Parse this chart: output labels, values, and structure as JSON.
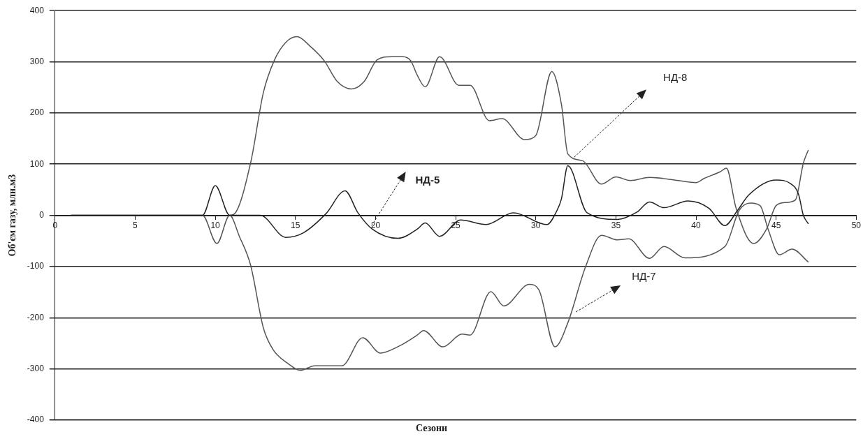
{
  "chart_data": {
    "type": "line",
    "xlabel": "Сезони",
    "ylabel": "Об'єм газу, млн.м3",
    "xlim": [
      0,
      50
    ],
    "xticks": [
      0,
      5,
      10,
      15,
      20,
      25,
      30,
      35,
      40,
      45,
      50
    ],
    "ylim": [
      -400,
      400
    ],
    "yticks": [
      -400,
      -300,
      -200,
      -100,
      0,
      100,
      200,
      300,
      400
    ],
    "grid": "y",
    "legend": false,
    "marker": "none",
    "line_style": "solid",
    "series": [
      {
        "color": "#222222",
        "x": [
          1,
          2,
          3,
          4,
          5,
          6,
          7,
          8,
          9.2,
          10.0,
          10.9,
          12.8,
          14.4,
          15.5,
          16.9,
          18.1,
          18.9,
          19.8,
          21.4,
          22.6,
          23.1,
          24.0,
          25.3,
          26.9,
          28.6,
          30.7,
          31.3,
          31.6,
          32.0,
          33.2,
          35.1,
          36.3,
          37.1,
          38.0,
          39.5,
          40.8,
          41.8,
          42.6,
          43.3,
          45.0,
          45.9,
          46.4,
          46.7,
          47.0
        ],
        "values": [
          0,
          0,
          0,
          0,
          0,
          0,
          0,
          0,
          0,
          58,
          0,
          0,
          -43,
          -34,
          3,
          48,
          5,
          -27,
          -45,
          -27,
          -15,
          -41,
          -9,
          -18,
          5,
          -18,
          8,
          32,
          97,
          5,
          -8,
          6,
          26,
          15,
          28,
          14,
          -20,
          10,
          40,
          69,
          62,
          41,
          0,
          -16
        ]
      },
      {
        "color": "#555555",
        "x": [
          1,
          2,
          3,
          4,
          5,
          6,
          7,
          8,
          9.2,
          10.1,
          10.9,
          11.5,
          12.2,
          13.0,
          13.6,
          14.6,
          15.3,
          16.2,
          17.9,
          19.2,
          20.3,
          21.5,
          22.6,
          23.0,
          24.2,
          25.4,
          25.9,
          27.2,
          28.0,
          29.6,
          30.2,
          31.2,
          32.0,
          33.1,
          34.1,
          35.1,
          35.8,
          37.1,
          38.0,
          39.3,
          41.8,
          42.7,
          43.4,
          44.0,
          44.5,
          45.2,
          46.0,
          47.0
        ],
        "values": [
          0,
          0,
          0,
          0,
          0,
          0,
          0,
          0,
          0,
          -55,
          0,
          -41,
          -97,
          -220,
          -262,
          -291,
          -303,
          -294,
          -294,
          -239,
          -269,
          -255,
          -234,
          -225,
          -257,
          -232,
          -234,
          -149,
          -177,
          -135,
          -146,
          -257,
          -210,
          -101,
          -39,
          -48,
          -46,
          -84,
          -61,
          -83,
          -61,
          10,
          24,
          19,
          -27,
          -77,
          -66,
          -91
        ]
      },
      {
        "color": "#555555",
        "x": [
          10.9,
          11.2,
          12.2,
          13.0,
          13.7,
          14.4,
          15.1,
          15.9,
          16.8,
          17.6,
          18.5,
          19.3,
          20.1,
          21.0,
          21.7,
          22.2,
          22.6,
          23.1,
          24.0,
          25.2,
          25.9,
          27.1,
          27.9,
          29.3,
          30.0,
          31.0,
          31.6,
          32.0,
          32.9,
          34.1,
          35.0,
          35.9,
          37.1,
          38.9,
          40.0,
          40.5,
          41.5,
          41.9,
          42.5,
          43.6,
          44.4,
          45.0,
          45.6,
          46.2,
          46.7,
          47.0
        ],
        "values": [
          0,
          3,
          102,
          240,
          304,
          338,
          349,
          331,
          302,
          262,
          247,
          262,
          304,
          310,
          310,
          302,
          274,
          251,
          310,
          254,
          254,
          185,
          189,
          148,
          156,
          281,
          217,
          120,
          107,
          61,
          75,
          68,
          74,
          68,
          64,
          72,
          85,
          92,
          14,
          -55,
          -27,
          19,
          25,
          30,
          102,
          127
        ]
      }
    ],
    "annotations": [
      "НД-8",
      "НД-5",
      "НД-7"
    ]
  }
}
